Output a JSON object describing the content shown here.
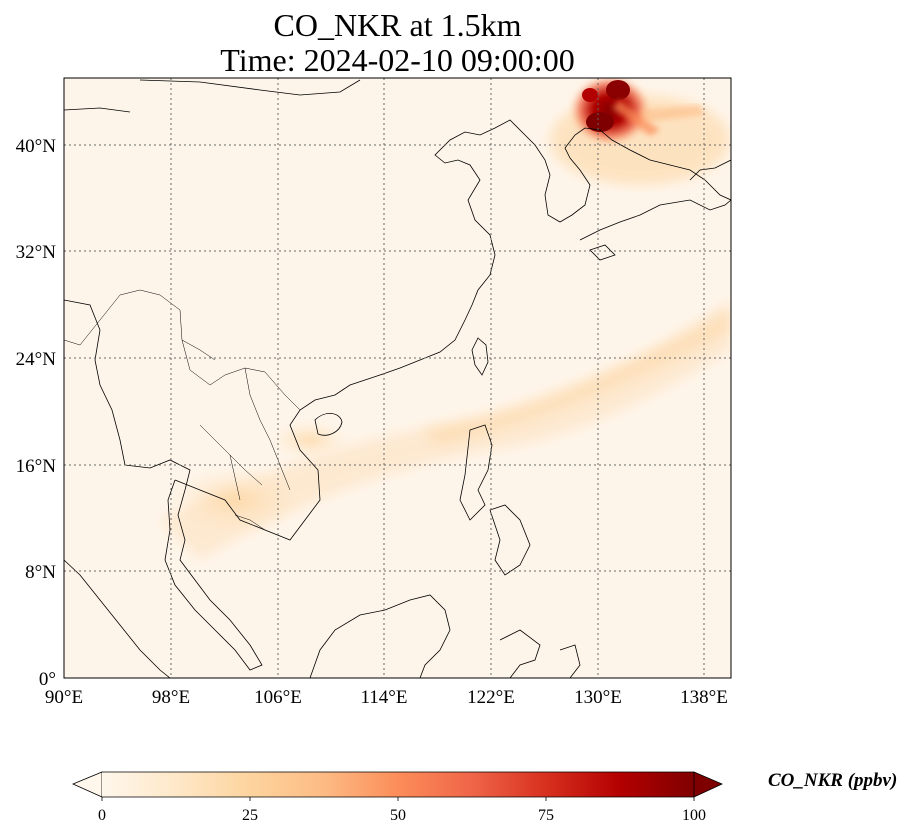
{
  "title": {
    "line1": "CO_NKR at 1.5km",
    "line2": "Time: 2024-02-10 09:00:00"
  },
  "map": {
    "projection": "PlateCarree",
    "lon_range": [
      90,
      140
    ],
    "lat_range": [
      0,
      45
    ],
    "gridlines": "dotted",
    "lon_ticks": [
      "90°E",
      "98°E",
      "106°E",
      "114°E",
      "122°E",
      "130°E",
      "138°E"
    ],
    "lat_ticks": [
      "0°",
      "8°N",
      "16°N",
      "24°N",
      "32°N",
      "40°N"
    ],
    "field": {
      "variable": "CO_NKR",
      "height": "1.5km",
      "hotspot": "high concentrations (up to 100+ ppbv) in NE China / Korea border region",
      "plume": "light plume stretching SW–NE from Indochina across South China Sea toward Japan"
    }
  },
  "colorbar": {
    "label": "CO_NKR (ppbv)",
    "cmap": "OrRd",
    "range": [
      0,
      100
    ],
    "extend": "both",
    "ticks": [
      "0",
      "25",
      "50",
      "75",
      "100"
    ],
    "colors": [
      "#fff7ec",
      "#fee8c8",
      "#fdd49e",
      "#fdbb84",
      "#fc8d59",
      "#ef6548",
      "#d7301f",
      "#b30000",
      "#7f0000"
    ]
  }
}
